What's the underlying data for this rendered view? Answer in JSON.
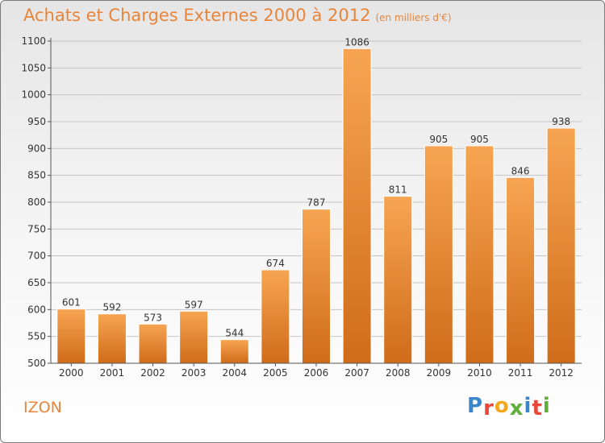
{
  "header": {
    "title": "Achats et Charges Externes 2000 à 2012",
    "unit": "(en milliers d'€)"
  },
  "place_name": "IZON",
  "logo": {
    "text": "Proxiti",
    "colors": [
      "#3a86c8",
      "#e8473a",
      "#f2a81d",
      "#5fae3a",
      "#3a86c8",
      "#e8473a",
      "#5fae3a"
    ]
  },
  "colors": {
    "bar_top": "#f7a552",
    "bar_bottom": "#cf6c1a",
    "title": "#e8853a"
  },
  "chart_data": {
    "type": "bar",
    "categories": [
      "2000",
      "2001",
      "2002",
      "2003",
      "2004",
      "2005",
      "2006",
      "2007",
      "2008",
      "2009",
      "2010",
      "2011",
      "2012"
    ],
    "values": [
      601,
      592,
      573,
      597,
      544,
      674,
      787,
      1086,
      811,
      905,
      905,
      846,
      938
    ],
    "ylim": [
      500,
      1100
    ],
    "yticks": [
      500,
      550,
      600,
      650,
      700,
      750,
      800,
      850,
      900,
      950,
      1000,
      1050,
      1100
    ],
    "grid": true,
    "data_labels": true
  }
}
